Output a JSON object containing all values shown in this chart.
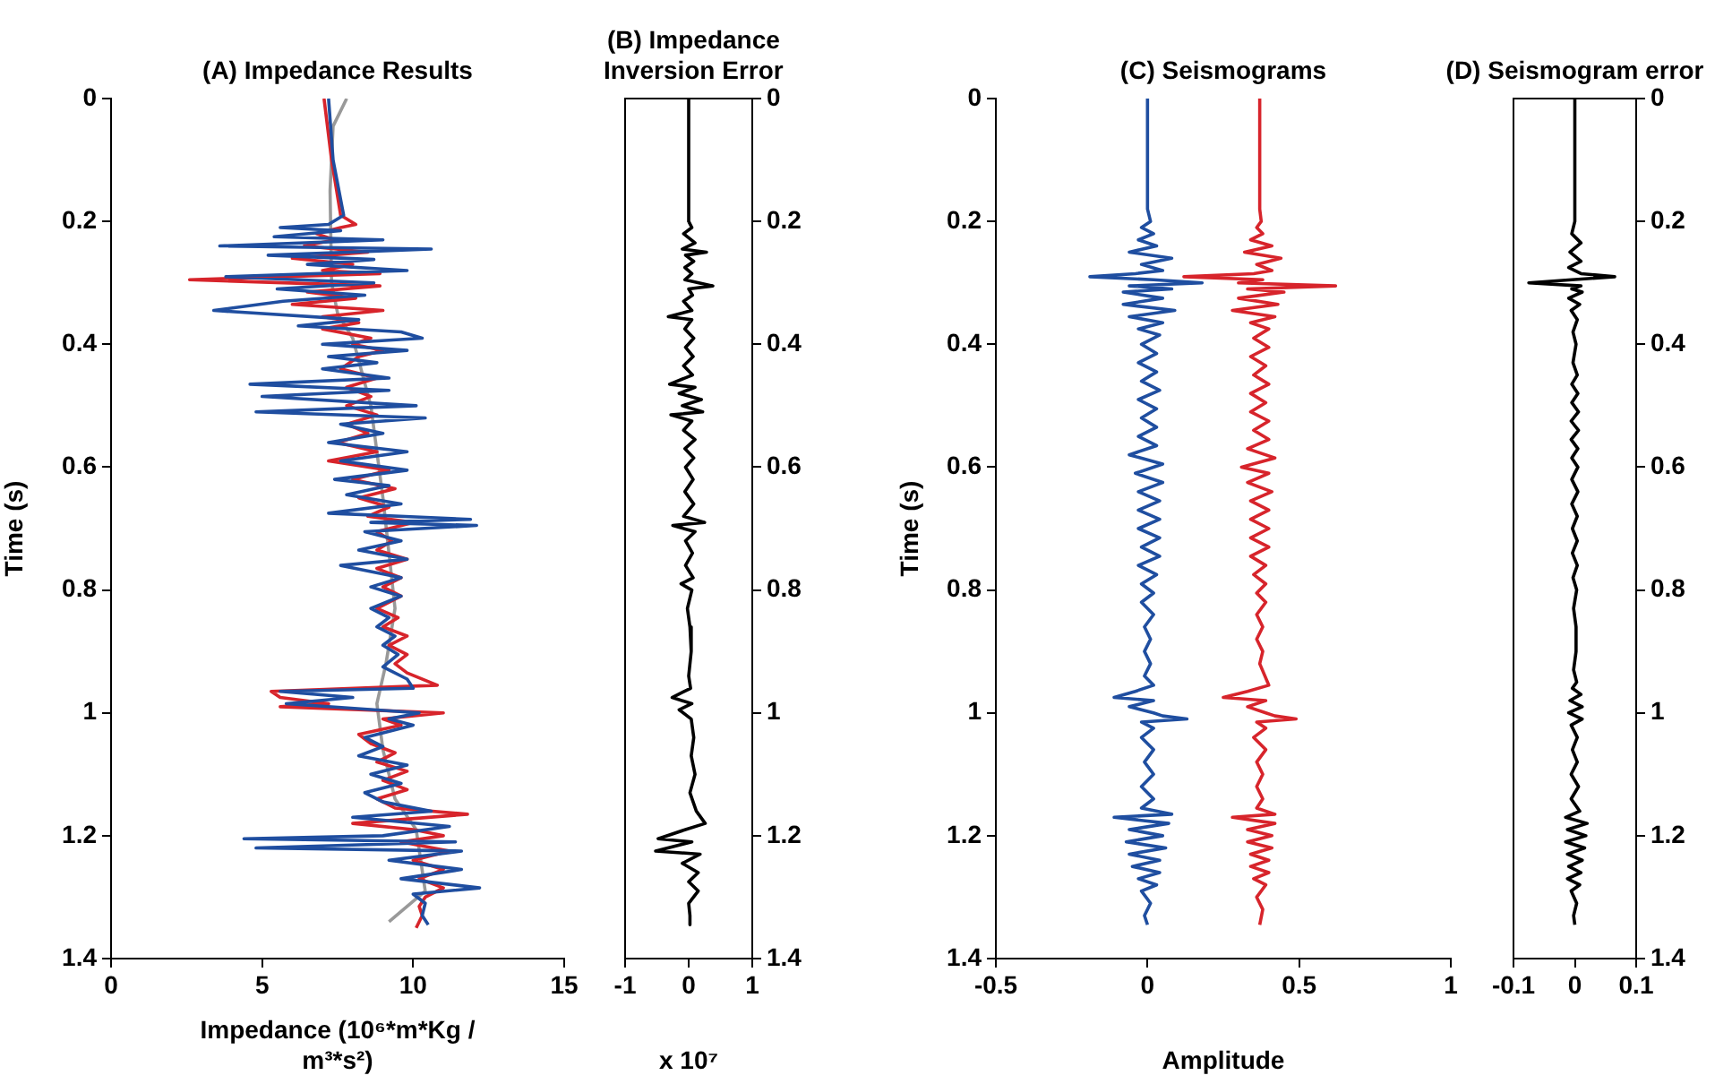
{
  "chart_data": [
    {
      "type": "line",
      "title": "(A) Impedance Results",
      "xlabel": "Impedance (10⁶*m*Kg / m³*s²)",
      "ylabel": "Time (s)",
      "xlim": [
        0,
        15
      ],
      "xticks": [
        0,
        5,
        10,
        15
      ],
      "ylim": [
        1.4,
        0
      ],
      "yticks": [
        0,
        0.2,
        0.4,
        0.6,
        0.8,
        1,
        1.2,
        1.4
      ],
      "series": [
        {
          "color": "#1f4ea0",
          "x": [
            7.2,
            7.35,
            7.7,
            7.2,
            5.6,
            7.6,
            5.4,
            9.0,
            3.6,
            10.6,
            5.2,
            8.7,
            6.5,
            9.8,
            3.8,
            8.7,
            5.5,
            8.4,
            5.7,
            3.4,
            8.2,
            6.2,
            9.6,
            10.3,
            7.0,
            9.8,
            7.2,
            8.8,
            7.0,
            9.2,
            4.6,
            9.2,
            5.0,
            10.1,
            4.8,
            10.4,
            7.6,
            9.0,
            7.2,
            9.8,
            7.6,
            9.8,
            7.4,
            9.2,
            7.8,
            9.6,
            7.2,
            11.9,
            8.6,
            12.1,
            8.4,
            9.6,
            8.2,
            9.8,
            7.6,
            9.6,
            8.6,
            9.6,
            8.6,
            9.2,
            8.8,
            9.4,
            9.0,
            9.5,
            9.0,
            9.8,
            10.0,
            5.6,
            8.0,
            5.8,
            10.2,
            9.2,
            10.0,
            8.4,
            9.0,
            8.2,
            9.8,
            8.6,
            9.6,
            8.4,
            9.0,
            10.6,
            8.0,
            11.2,
            9.0,
            4.4,
            11.4,
            4.8,
            11.6,
            9.2,
            11.6,
            9.6,
            12.2,
            10.0,
            10.4,
            10.3,
            10.5
          ],
          "values": [
            0,
            0.1,
            0.19,
            0.205,
            0.21,
            0.215,
            0.225,
            0.23,
            0.24,
            0.245,
            0.255,
            0.262,
            0.27,
            0.28,
            0.29,
            0.3,
            0.31,
            0.32,
            0.33,
            0.345,
            0.36,
            0.37,
            0.38,
            0.39,
            0.4,
            0.41,
            0.42,
            0.43,
            0.44,
            0.455,
            0.465,
            0.475,
            0.485,
            0.5,
            0.51,
            0.52,
            0.53,
            0.545,
            0.56,
            0.575,
            0.59,
            0.605,
            0.62,
            0.63,
            0.645,
            0.66,
            0.675,
            0.685,
            0.69,
            0.695,
            0.705,
            0.72,
            0.735,
            0.75,
            0.76,
            0.78,
            0.795,
            0.81,
            0.83,
            0.845,
            0.86,
            0.875,
            0.89,
            0.905,
            0.925,
            0.945,
            0.96,
            0.965,
            0.975,
            0.985,
            1.0,
            1.01,
            1.02,
            1.04,
            1.055,
            1.07,
            1.085,
            1.1,
            1.115,
            1.13,
            1.145,
            1.16,
            1.17,
            1.185,
            1.2,
            1.205,
            1.21,
            1.22,
            1.225,
            1.24,
            1.255,
            1.27,
            1.285,
            1.295,
            1.31,
            1.33,
            1.345
          ]
        },
        {
          "color": "#d7242b",
          "x": [
            7.05,
            7.3,
            7.6,
            8.1,
            7.6,
            6.8,
            7.4,
            6.4,
            8.5,
            6.0,
            8.0,
            7.0,
            8.9,
            2.6,
            8.9,
            6.5,
            8.1,
            6.0,
            9.0,
            7.0,
            8.2,
            7.0,
            8.6,
            8.0,
            9.0,
            8.2,
            7.6,
            8.8,
            7.8,
            8.6,
            7.8,
            8.8,
            7.8,
            8.5,
            7.5,
            8.8,
            7.2,
            9.2,
            8.0,
            9.4,
            8.2,
            9.2,
            8.5,
            10.0,
            8.8,
            9.3,
            8.8,
            9.8,
            8.8,
            9.6,
            9.0,
            9.6,
            8.8,
            9.5,
            9.0,
            9.8,
            9.2,
            9.8,
            9.4,
            9.8,
            10.8,
            5.3,
            5.6,
            7.2,
            5.6,
            11.0,
            9.0,
            9.6,
            8.2,
            8.6,
            9.4,
            8.8,
            9.8,
            9.0,
            9.8,
            8.8,
            9.4,
            11.8,
            8.0,
            10.0,
            11.0,
            9.6,
            11.2,
            10.0,
            11.0,
            10.2,
            11.0,
            10.4,
            10.2,
            10.3,
            10.1
          ],
          "values": [
            0,
            0.1,
            0.19,
            0.205,
            0.21,
            0.22,
            0.23,
            0.24,
            0.25,
            0.26,
            0.27,
            0.28,
            0.285,
            0.295,
            0.305,
            0.315,
            0.325,
            0.335,
            0.345,
            0.355,
            0.365,
            0.375,
            0.39,
            0.4,
            0.41,
            0.42,
            0.44,
            0.455,
            0.47,
            0.485,
            0.5,
            0.515,
            0.53,
            0.545,
            0.56,
            0.575,
            0.59,
            0.605,
            0.62,
            0.635,
            0.65,
            0.665,
            0.68,
            0.69,
            0.705,
            0.72,
            0.735,
            0.75,
            0.765,
            0.78,
            0.795,
            0.81,
            0.83,
            0.845,
            0.86,
            0.875,
            0.89,
            0.905,
            0.92,
            0.935,
            0.955,
            0.965,
            0.975,
            0.985,
            0.99,
            1.0,
            1.01,
            1.02,
            1.035,
            1.05,
            1.065,
            1.08,
            1.095,
            1.11,
            1.125,
            1.14,
            1.155,
            1.165,
            1.18,
            1.19,
            1.2,
            1.21,
            1.225,
            1.24,
            1.255,
            1.27,
            1.285,
            1.3,
            1.315,
            1.33,
            1.35
          ]
        },
        {
          "color": "#999999",
          "x": [
            7.8,
            7.35,
            7.25,
            7.3,
            7.5,
            8.0,
            8.6,
            9.0,
            9.4,
            9.1,
            8.8,
            9.0,
            9.4,
            10.1,
            10.4,
            9.2
          ],
          "values": [
            0,
            0.045,
            0.15,
            0.3,
            0.35,
            0.39,
            0.5,
            0.65,
            0.83,
            0.92,
            0.985,
            1.06,
            1.14,
            1.19,
            1.29,
            1.34
          ]
        }
      ]
    },
    {
      "type": "line",
      "title": "(B) Impedance Inversion Error",
      "xlabel": "x 10⁷",
      "xlim": [
        -1,
        1
      ],
      "xticks": [
        -1,
        0,
        1
      ],
      "ylim": [
        1.4,
        0
      ],
      "yticks": [
        0,
        0.2,
        0.4,
        0.6,
        0.8,
        1,
        1.2,
        1.4
      ],
      "series": [
        {
          "color": "#000000",
          "x": [
            0,
            0,
            0.05,
            -0.08,
            0.1,
            -0.1,
            0.28,
            -0.05,
            0.08,
            -0.06,
            0.05,
            -0.06,
            0.38,
            0.0,
            0.06,
            -0.08,
            0.05,
            -0.32,
            0.05,
            -0.06,
            0.08,
            -0.05,
            0.07,
            -0.08,
            0.06,
            -0.3,
            0.1,
            -0.15,
            0.2,
            -0.1,
            0.22,
            -0.28,
            0.05,
            -0.08,
            0.1,
            -0.06,
            0.08,
            -0.05,
            0.07,
            -0.06,
            0.08,
            -0.08,
            0.25,
            -0.25,
            0.1,
            -0.05,
            0.06,
            -0.05,
            0.07,
            -0.12,
            0.05,
            -0.02,
            0.02,
            0.04,
            0.0,
            0.03,
            -0.26,
            0.05,
            -0.15,
            0.04,
            0.08,
            0.04,
            0.1,
            0.02,
            0.12,
            0.26,
            -0.05,
            -0.48,
            0.05,
            -0.52,
            0.18,
            -0.1,
            0.15,
            0.0,
            0.15,
            0.0,
            0.02,
            0.02
          ],
          "values": [
            0,
            0.2,
            0.21,
            0.22,
            0.235,
            0.245,
            0.25,
            0.255,
            0.265,
            0.275,
            0.285,
            0.295,
            0.305,
            0.31,
            0.32,
            0.33,
            0.345,
            0.355,
            0.36,
            0.375,
            0.39,
            0.405,
            0.42,
            0.435,
            0.45,
            0.465,
            0.47,
            0.48,
            0.49,
            0.5,
            0.51,
            0.515,
            0.525,
            0.54,
            0.555,
            0.57,
            0.585,
            0.6,
            0.62,
            0.64,
            0.66,
            0.68,
            0.69,
            0.695,
            0.705,
            0.72,
            0.74,
            0.76,
            0.78,
            0.79,
            0.8,
            0.83,
            0.86,
            0.9,
            0.94,
            0.96,
            0.975,
            0.985,
            0.995,
            1.01,
            1.04,
            1.07,
            1.1,
            1.13,
            1.16,
            1.18,
            1.19,
            1.205,
            1.21,
            1.225,
            1.23,
            1.245,
            1.26,
            1.275,
            1.29,
            1.31,
            1.33,
            1.345
          ]
        }
      ]
    },
    {
      "type": "line",
      "title": "(C) Seismograms",
      "xlabel": "Amplitude",
      "ylabel": "Time (s)",
      "xlim": [
        -0.5,
        1
      ],
      "xticks": [
        -0.5,
        0,
        0.5,
        1
      ],
      "ylim": [
        1.4,
        0
      ],
      "yticks": [
        0,
        0.2,
        0.4,
        0.6,
        0.8,
        1,
        1.2,
        1.4
      ],
      "series": [
        {
          "color": "#1f4ea0",
          "x": [
            0,
            0,
            0.01,
            -0.02,
            0.02,
            -0.03,
            0.03,
            -0.06,
            0.08,
            -0.02,
            0.05,
            -0.04,
            -0.19,
            0.02,
            0.18,
            -0.06,
            0.08,
            -0.08,
            0.05,
            -0.08,
            0.09,
            -0.06,
            0.05,
            -0.03,
            0.04,
            -0.02,
            0.03,
            -0.03,
            0.03,
            -0.02,
            0.04,
            -0.03,
            0.03,
            -0.02,
            0.03,
            -0.03,
            0.03,
            -0.06,
            0.05,
            -0.04,
            0.05,
            -0.03,
            0.04,
            -0.03,
            0.04,
            -0.03,
            0.04,
            -0.02,
            0.04,
            -0.03,
            0.03,
            -0.02,
            0.02,
            -0.02,
            0.02,
            -0.01,
            0.01,
            -0.01,
            0.01,
            -0.01,
            0.02,
            -0.04,
            -0.11,
            0.02,
            -0.06,
            0.02,
            0.05,
            0.13,
            -0.02,
            0.02,
            -0.02,
            0.02,
            -0.01,
            0.02,
            -0.02,
            0.02,
            -0.02,
            0.08,
            -0.11,
            0.07,
            -0.06,
            0.05,
            -0.07,
            0.06,
            -0.06,
            0.04,
            -0.05,
            0.04,
            -0.03,
            0.03,
            -0.02,
            0.01,
            -0.01,
            0.0
          ],
          "values": [
            0,
            0.18,
            0.2,
            0.21,
            0.22,
            0.23,
            0.24,
            0.25,
            0.26,
            0.27,
            0.28,
            0.285,
            0.29,
            0.295,
            0.3,
            0.305,
            0.31,
            0.315,
            0.325,
            0.335,
            0.345,
            0.355,
            0.365,
            0.375,
            0.385,
            0.4,
            0.415,
            0.43,
            0.445,
            0.46,
            0.475,
            0.49,
            0.505,
            0.52,
            0.535,
            0.55,
            0.565,
            0.58,
            0.595,
            0.61,
            0.625,
            0.64,
            0.655,
            0.67,
            0.685,
            0.7,
            0.715,
            0.73,
            0.745,
            0.76,
            0.775,
            0.79,
            0.805,
            0.82,
            0.84,
            0.86,
            0.88,
            0.9,
            0.92,
            0.94,
            0.955,
            0.965,
            0.975,
            0.98,
            0.99,
            1.0,
            1.005,
            1.01,
            1.015,
            1.025,
            1.04,
            1.06,
            1.08,
            1.1,
            1.12,
            1.14,
            1.155,
            1.165,
            1.17,
            1.18,
            1.19,
            1.2,
            1.21,
            1.22,
            1.23,
            1.24,
            1.25,
            1.26,
            1.27,
            1.28,
            1.29,
            1.31,
            1.33,
            1.345
          ]
        },
        {
          "color": "#d7242b",
          "x": [
            0.37,
            0.37,
            0.375,
            0.36,
            0.38,
            0.34,
            0.41,
            0.32,
            0.44,
            0.36,
            0.41,
            0.35,
            0.12,
            0.38,
            0.3,
            0.62,
            0.33,
            0.45,
            0.3,
            0.43,
            0.28,
            0.42,
            0.34,
            0.4,
            0.35,
            0.4,
            0.34,
            0.39,
            0.35,
            0.4,
            0.34,
            0.39,
            0.34,
            0.4,
            0.35,
            0.4,
            0.33,
            0.42,
            0.31,
            0.4,
            0.33,
            0.41,
            0.34,
            0.4,
            0.34,
            0.4,
            0.34,
            0.4,
            0.34,
            0.39,
            0.35,
            0.39,
            0.36,
            0.39,
            0.36,
            0.38,
            0.36,
            0.38,
            0.37,
            0.4,
            0.33,
            0.25,
            0.39,
            0.33,
            0.39,
            0.42,
            0.49,
            0.36,
            0.39,
            0.35,
            0.39,
            0.36,
            0.38,
            0.36,
            0.38,
            0.36,
            0.42,
            0.28,
            0.42,
            0.33,
            0.41,
            0.33,
            0.41,
            0.34,
            0.4,
            0.34,
            0.4,
            0.35,
            0.39,
            0.36,
            0.38,
            0.37
          ],
          "values": [
            0,
            0.18,
            0.2,
            0.21,
            0.22,
            0.23,
            0.24,
            0.25,
            0.26,
            0.27,
            0.28,
            0.285,
            0.29,
            0.295,
            0.3,
            0.305,
            0.31,
            0.315,
            0.325,
            0.335,
            0.345,
            0.355,
            0.365,
            0.375,
            0.39,
            0.405,
            0.42,
            0.435,
            0.45,
            0.465,
            0.48,
            0.495,
            0.51,
            0.525,
            0.54,
            0.555,
            0.57,
            0.585,
            0.6,
            0.61,
            0.625,
            0.64,
            0.655,
            0.67,
            0.685,
            0.7,
            0.715,
            0.73,
            0.745,
            0.76,
            0.775,
            0.79,
            0.805,
            0.82,
            0.84,
            0.86,
            0.88,
            0.9,
            0.92,
            0.955,
            0.965,
            0.975,
            0.98,
            0.99,
            1.0,
            1.005,
            1.01,
            1.015,
            1.025,
            1.04,
            1.06,
            1.08,
            1.1,
            1.12,
            1.14,
            1.155,
            1.165,
            1.17,
            1.18,
            1.19,
            1.2,
            1.21,
            1.22,
            1.23,
            1.24,
            1.25,
            1.26,
            1.27,
            1.28,
            1.3,
            1.32,
            1.345
          ]
        }
      ]
    },
    {
      "type": "line",
      "title": "(D) Seismogram error",
      "xlim": [
        -0.1,
        0.1
      ],
      "xticks": [
        -0.1,
        0,
        0.1
      ],
      "ylim": [
        1.4,
        0
      ],
      "yticks": [
        0,
        0.2,
        0.4,
        0.6,
        0.8,
        1,
        1.2,
        1.4
      ],
      "series": [
        {
          "color": "#000000",
          "x": [
            0,
            0,
            -0.005,
            0.01,
            -0.008,
            0.01,
            -0.01,
            0.01,
            0.065,
            -0.005,
            -0.075,
            0.01,
            -0.005,
            0.012,
            -0.01,
            0.008,
            -0.006,
            0.004,
            -0.003,
            0.002,
            -0.003,
            0.004,
            -0.005,
            0.005,
            -0.005,
            0.006,
            -0.006,
            0.006,
            -0.006,
            0.005,
            -0.005,
            0.005,
            -0.005,
            0.005,
            -0.005,
            0.004,
            -0.004,
            0.004,
            -0.004,
            0.004,
            -0.003,
            0.003,
            -0.002,
            0.002,
            0.002,
            -0.002,
            0.003,
            -0.004,
            0.01,
            -0.008,
            0.012,
            -0.01,
            0.012,
            -0.006,
            0.004,
            -0.004,
            0.004,
            -0.006,
            0.006,
            -0.006,
            0.008,
            -0.015,
            0.02,
            -0.012,
            0.018,
            -0.015,
            0.016,
            -0.012,
            0.012,
            -0.01,
            0.01,
            -0.012,
            0.008,
            -0.006,
            0.003,
            -0.002,
            0.0
          ],
          "values": [
            0,
            0.2,
            0.22,
            0.235,
            0.25,
            0.265,
            0.275,
            0.285,
            0.29,
            0.295,
            0.3,
            0.305,
            0.31,
            0.315,
            0.325,
            0.335,
            0.345,
            0.36,
            0.38,
            0.4,
            0.43,
            0.45,
            0.465,
            0.48,
            0.495,
            0.51,
            0.525,
            0.54,
            0.555,
            0.57,
            0.585,
            0.6,
            0.62,
            0.64,
            0.66,
            0.68,
            0.7,
            0.72,
            0.74,
            0.76,
            0.78,
            0.8,
            0.83,
            0.86,
            0.9,
            0.93,
            0.95,
            0.96,
            0.97,
            0.98,
            0.99,
            1.0,
            1.01,
            1.02,
            1.04,
            1.06,
            1.08,
            1.1,
            1.12,
            1.14,
            1.16,
            1.17,
            1.18,
            1.19,
            1.2,
            1.21,
            1.22,
            1.23,
            1.24,
            1.25,
            1.26,
            1.27,
            1.28,
            1.29,
            1.31,
            1.33,
            1.345
          ]
        }
      ]
    }
  ]
}
